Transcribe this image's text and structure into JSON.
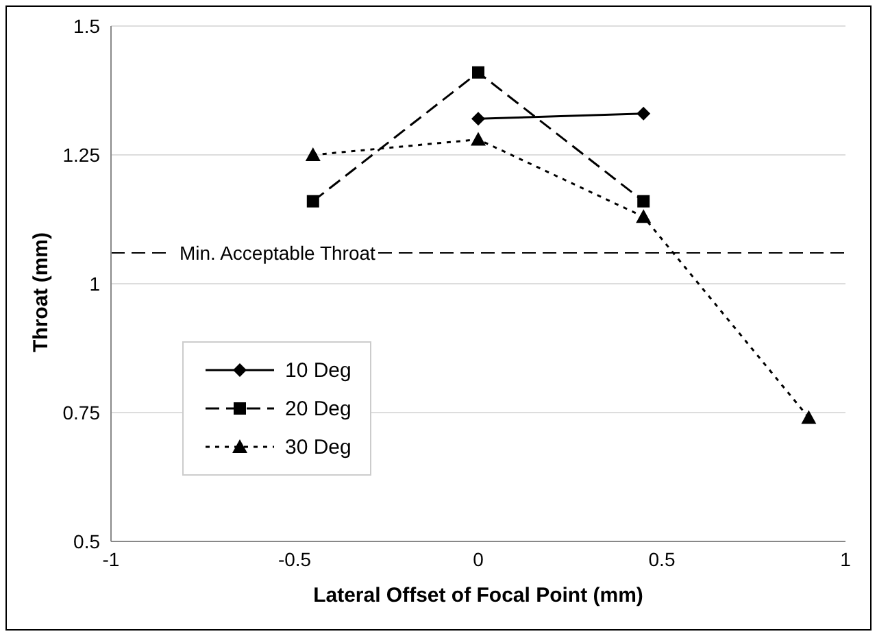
{
  "chart_data": {
    "type": "line",
    "xlabel": "Lateral Offset of Focal Point (mm)",
    "ylabel": "Throat (mm)",
    "xlim": [
      -1,
      1
    ],
    "xticks": [
      -1,
      -0.5,
      0,
      0.5,
      1
    ],
    "ylim": [
      0.5,
      1.5
    ],
    "yticks": [
      0.5,
      0.75,
      1,
      1.25,
      1.5
    ],
    "grid": "y",
    "legend": "bottom left",
    "series": [
      {
        "name": "10 Deg",
        "color": "#000000",
        "marker": "diamond",
        "line_style": "solid",
        "x": [
          0,
          0.45
        ],
        "values": [
          1.32,
          1.33
        ]
      },
      {
        "name": "20 Deg",
        "color": "#000000",
        "marker": "square",
        "line_style": "dashed",
        "x": [
          -0.45,
          0,
          0.45
        ],
        "values": [
          1.16,
          1.41,
          1.16
        ]
      },
      {
        "name": "30 Deg",
        "color": "#000000",
        "marker": "triangle",
        "line_style": "dotted",
        "x": [
          -0.45,
          0,
          0.45,
          0.9
        ],
        "values": [
          1.25,
          1.28,
          1.13,
          0.74
        ]
      }
    ],
    "ref_lines": [
      {
        "axis": "y",
        "value": 1.06,
        "label": "Min. Acceptable Throat",
        "color": "#000000",
        "line_style": "dashed"
      }
    ]
  }
}
